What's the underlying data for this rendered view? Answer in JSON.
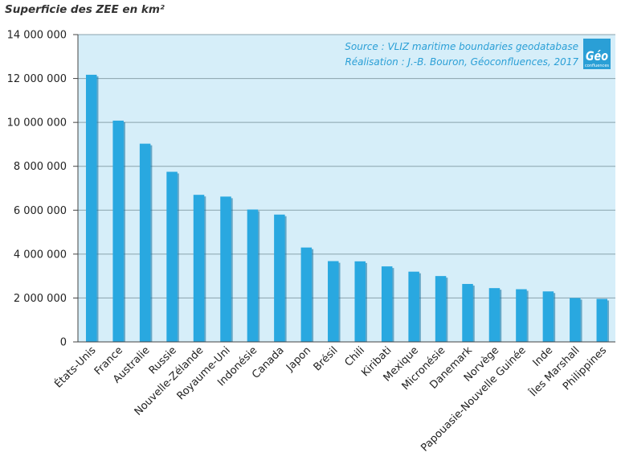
{
  "title": "Superficie des ZEE en km²",
  "colors": {
    "bar": "#29a8e0",
    "bar_shadow": "#0d6f9e",
    "plot_bg": "#d6eef9",
    "grid": "#8aa3ad",
    "source": "#2a9fd6",
    "logo": "#2a9fd6"
  },
  "source": {
    "line1": "Source : VLIZ maritime boundaries geodatabase",
    "line2": "Réalisation : J.-B. Bouron, Géoconfluences, 2017"
  },
  "logo": {
    "text": "Géo",
    "subtext": "confluences"
  },
  "chart_data": {
    "type": "bar",
    "title": "Superficie des ZEE en km²",
    "xlabel": "",
    "ylabel": "",
    "ylim": [
      0,
      14000000
    ],
    "yticks": [
      0,
      2000000,
      4000000,
      6000000,
      8000000,
      10000000,
      12000000,
      14000000
    ],
    "ytick_labels": [
      "0",
      "2 000 000",
      "4 000 000",
      "6 000 000",
      "8 000 000",
      "10 000 000",
      "12 000 000",
      "14 000 000"
    ],
    "grid": true,
    "categories": [
      "États-Unis",
      "France",
      "Australie",
      "Russie",
      "Nouvelle-Zélande",
      "Royaume-Uni",
      "Indonésie",
      "Canada",
      "Japon",
      "Brésil",
      "Chili",
      "Kiribati",
      "Mexique",
      "Micronésie",
      "Danemark",
      "Norvège",
      "Papouasie-Nouvelle Guinée",
      "Inde",
      "Îles Marshall",
      "Philippines"
    ],
    "values": [
      12170000,
      10080000,
      9030000,
      7750000,
      6700000,
      6620000,
      6030000,
      5800000,
      4300000,
      3680000,
      3670000,
      3440000,
      3200000,
      3000000,
      2640000,
      2450000,
      2400000,
      2300000,
      2000000,
      1960000
    ]
  }
}
